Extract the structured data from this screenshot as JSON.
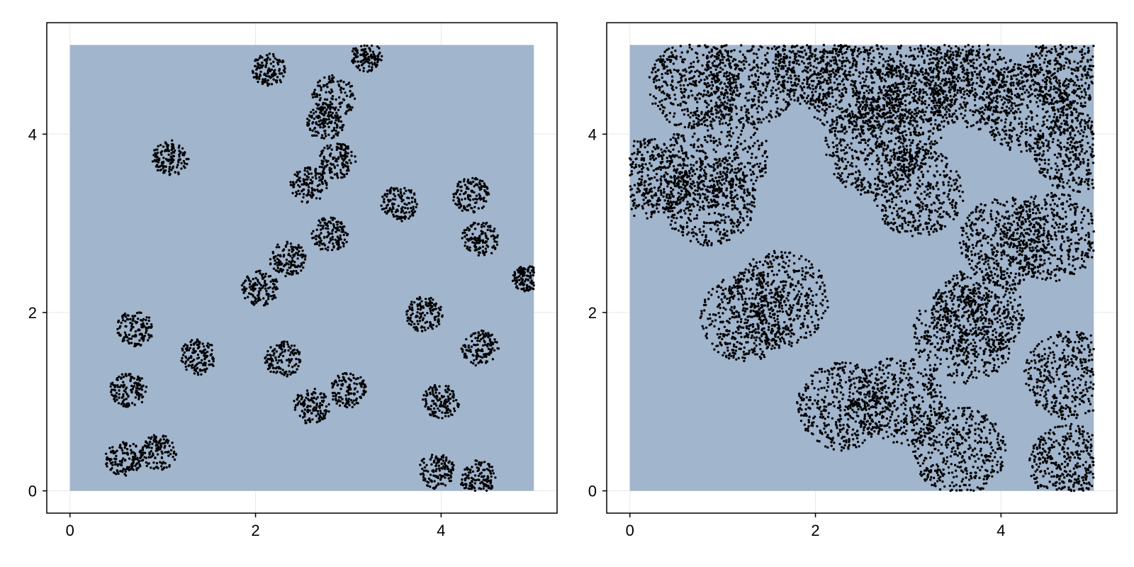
{
  "chart_data": [
    {
      "type": "scatter",
      "title": "",
      "xlabel": "",
      "ylabel": "",
      "xlim": [
        -0.25,
        5.25
      ],
      "ylim": [
        -0.25,
        5.25
      ],
      "xticks": [
        0,
        2,
        4
      ],
      "yticks": [
        0,
        2,
        4
      ],
      "grid": true,
      "legend": "none",
      "region": {
        "x": [
          0,
          5
        ],
        "y": [
          0,
          5
        ],
        "color": "#a1b5cd"
      },
      "marker_color": "#000000",
      "point_count_per_cluster": 130,
      "clusters": [
        {
          "x": 2.15,
          "y": 4.72,
          "r": 0.19
        },
        {
          "x": 3.2,
          "y": 4.88,
          "r": 0.18
        },
        {
          "x": 2.85,
          "y": 4.42,
          "r": 0.24
        },
        {
          "x": 2.75,
          "y": 4.12,
          "r": 0.2
        },
        {
          "x": 1.08,
          "y": 3.73,
          "r": 0.2
        },
        {
          "x": 2.88,
          "y": 3.7,
          "r": 0.2
        },
        {
          "x": 2.57,
          "y": 3.43,
          "r": 0.2
        },
        {
          "x": 3.55,
          "y": 3.22,
          "r": 0.2
        },
        {
          "x": 4.32,
          "y": 3.32,
          "r": 0.2
        },
        {
          "x": 2.8,
          "y": 2.87,
          "r": 0.2
        },
        {
          "x": 4.42,
          "y": 2.82,
          "r": 0.2
        },
        {
          "x": 2.35,
          "y": 2.6,
          "r": 0.2
        },
        {
          "x": 2.05,
          "y": 2.27,
          "r": 0.2
        },
        {
          "x": 4.92,
          "y": 2.38,
          "r": 0.15
        },
        {
          "x": 3.82,
          "y": 1.98,
          "r": 0.2
        },
        {
          "x": 0.7,
          "y": 1.82,
          "r": 0.2
        },
        {
          "x": 1.38,
          "y": 1.5,
          "r": 0.2
        },
        {
          "x": 2.3,
          "y": 1.48,
          "r": 0.2
        },
        {
          "x": 4.42,
          "y": 1.6,
          "r": 0.2
        },
        {
          "x": 0.63,
          "y": 1.13,
          "r": 0.2
        },
        {
          "x": 3.0,
          "y": 1.13,
          "r": 0.2
        },
        {
          "x": 2.6,
          "y": 0.95,
          "r": 0.2
        },
        {
          "x": 4.0,
          "y": 1.0,
          "r": 0.2
        },
        {
          "x": 0.58,
          "y": 0.36,
          "r": 0.2
        },
        {
          "x": 0.95,
          "y": 0.43,
          "r": 0.2
        },
        {
          "x": 3.95,
          "y": 0.22,
          "r": 0.2
        },
        {
          "x": 4.4,
          "y": 0.15,
          "r": 0.2
        }
      ]
    },
    {
      "type": "scatter",
      "title": "",
      "xlabel": "",
      "ylabel": "",
      "xlim": [
        -0.25,
        5.25
      ],
      "ylim": [
        -0.25,
        5.25
      ],
      "xticks": [
        0,
        2,
        4
      ],
      "yticks": [
        0,
        2,
        4
      ],
      "grid": true,
      "legend": "none",
      "region": {
        "x": [
          0,
          5
        ],
        "y": [
          0,
          5
        ],
        "color": "#a1b5cd"
      },
      "marker_color": "#000000",
      "point_count_per_cluster": 420,
      "clusters": [
        {
          "x": 0.7,
          "y": 4.55,
          "r": 0.5
        },
        {
          "x": 1.3,
          "y": 4.6,
          "r": 0.5
        },
        {
          "x": 0.95,
          "y": 3.75,
          "r": 0.55
        },
        {
          "x": 0.85,
          "y": 3.25,
          "r": 0.5
        },
        {
          "x": 0.2,
          "y": 3.5,
          "r": 0.45
        },
        {
          "x": 2.0,
          "y": 4.75,
          "r": 0.45
        },
        {
          "x": 2.4,
          "y": 4.55,
          "r": 0.55
        },
        {
          "x": 2.9,
          "y": 4.25,
          "r": 0.55
        },
        {
          "x": 3.25,
          "y": 4.65,
          "r": 0.5
        },
        {
          "x": 2.65,
          "y": 3.85,
          "r": 0.55
        },
        {
          "x": 3.1,
          "y": 3.35,
          "r": 0.5
        },
        {
          "x": 3.7,
          "y": 4.55,
          "r": 0.5
        },
        {
          "x": 4.25,
          "y": 4.3,
          "r": 0.5
        },
        {
          "x": 4.7,
          "y": 4.7,
          "r": 0.45
        },
        {
          "x": 4.8,
          "y": 3.8,
          "r": 0.45
        },
        {
          "x": 4.05,
          "y": 2.8,
          "r": 0.5
        },
        {
          "x": 4.55,
          "y": 2.85,
          "r": 0.5
        },
        {
          "x": 1.25,
          "y": 1.95,
          "r": 0.5
        },
        {
          "x": 1.6,
          "y": 2.15,
          "r": 0.55
        },
        {
          "x": 3.6,
          "y": 1.75,
          "r": 0.55
        },
        {
          "x": 3.75,
          "y": 2.0,
          "r": 0.5
        },
        {
          "x": 2.3,
          "y": 0.95,
          "r": 0.5
        },
        {
          "x": 2.9,
          "y": 1.0,
          "r": 0.5
        },
        {
          "x": 3.55,
          "y": 0.45,
          "r": 0.5
        },
        {
          "x": 4.75,
          "y": 1.3,
          "r": 0.5
        },
        {
          "x": 4.75,
          "y": 0.3,
          "r": 0.45
        }
      ]
    }
  ]
}
